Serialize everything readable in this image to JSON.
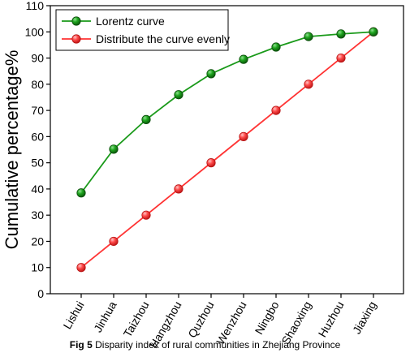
{
  "caption": {
    "prefix": "Fig 5",
    "text": "Disparity index of rural communities in Zhejiang Province"
  },
  "chart_data": {
    "type": "line",
    "ylabel": "Cumulative percentage%",
    "xlabel": "",
    "ylim": [
      0,
      110
    ],
    "yticks": [
      0,
      10,
      20,
      30,
      40,
      50,
      60,
      70,
      80,
      90,
      100,
      110
    ],
    "grid": false,
    "legend_position": "top-left",
    "categories": [
      "Lishui",
      "Jinhua",
      "Taizhou",
      "Hangzhou",
      "Quzhou",
      "Wenzhou",
      "Ningbo",
      "Shaoxing",
      "Huzhou",
      "Jiaxing"
    ],
    "series": [
      {
        "name": "Lorentz curve",
        "color": "#1a9a1a",
        "values": [
          38.5,
          55.2,
          66.5,
          76,
          84,
          89.5,
          94.2,
          98.2,
          99.2,
          100
        ]
      },
      {
        "name": "Distribute the curve evenly",
        "color": "#ff3333",
        "values": [
          10,
          20,
          30,
          40,
          50,
          60,
          70,
          80,
          90,
          100
        ]
      }
    ]
  }
}
